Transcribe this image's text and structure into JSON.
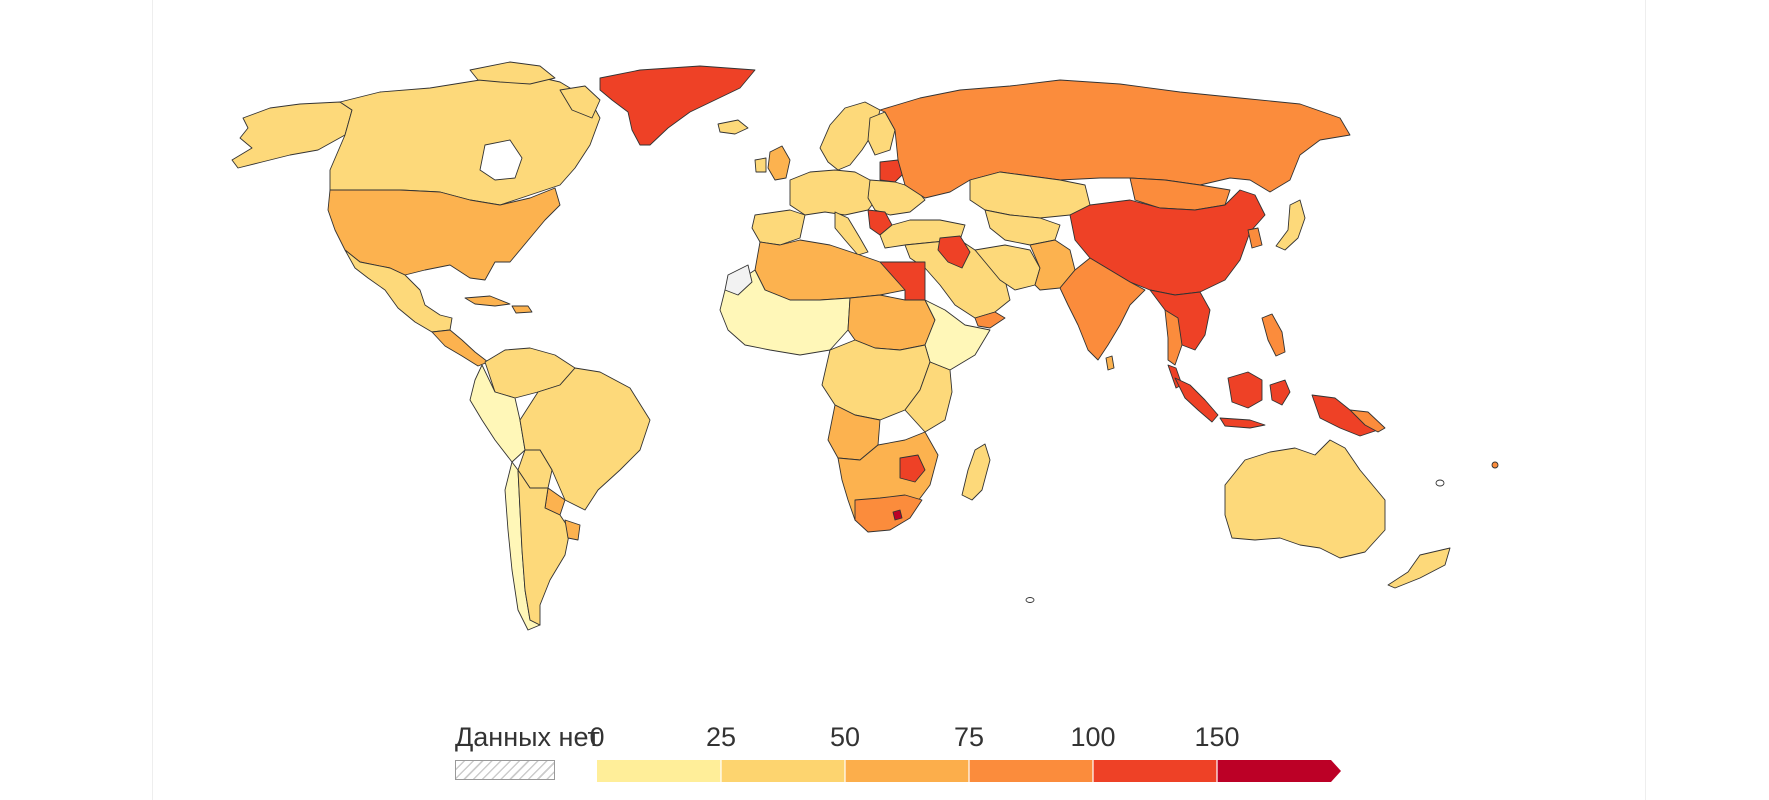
{
  "legend": {
    "no_data_label": "Данных нет",
    "ticks": [
      "0",
      "25",
      "50",
      "75",
      "100",
      "150"
    ],
    "bins": [
      {
        "from": "0",
        "to": "25",
        "color": "#FFEE99"
      },
      {
        "from": "25",
        "to": "50",
        "color": "#FDD46F"
      },
      {
        "from": "50",
        "to": "75",
        "color": "#FCAE4B"
      },
      {
        "from": "75",
        "to": "100",
        "color": "#FB8C3C"
      },
      {
        "from": "100",
        "to": "150",
        "color": "#EE4126"
      },
      {
        "from": "150",
        "to": "",
        "color": "#BC0026"
      }
    ],
    "no_data_pattern": "diagonal-hatch"
  },
  "map": {
    "projection": "world",
    "colors": {
      "c0": "#FFF7B8",
      "c1": "#FDD97A",
      "c2": "#FCB24F",
      "c3": "#FB8C3C",
      "c4": "#EE4126",
      "c5": "#BC0026"
    }
  }
}
